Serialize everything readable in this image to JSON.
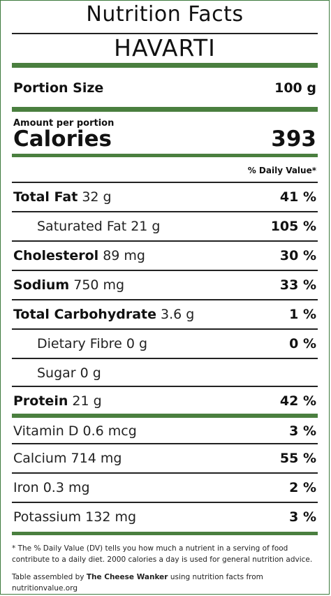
{
  "label": {
    "title": "Nutrition Facts",
    "product": "HAVARTI",
    "portion": {
      "label": "Portion Size",
      "value": "100 g"
    },
    "amount_per_portion": "Amount per portion",
    "calories": {
      "label": "Calories",
      "value": "393"
    },
    "daily_value_header": "% Daily Value*",
    "nutrients": [
      {
        "name": "Total Fat",
        "amount": "32 g",
        "pct": "41 %"
      },
      {
        "name": "Saturated Fat",
        "amount": "21 g",
        "pct": "105 %"
      },
      {
        "name": "Cholesterol",
        "amount": "89 mg",
        "pct": "30 %"
      },
      {
        "name": "Sodium",
        "amount": "750 mg",
        "pct": "33 %"
      },
      {
        "name": "Total Carbohydrate",
        "amount": "3.6 g",
        "pct": "1 %"
      },
      {
        "name": "Dietary Fibre",
        "amount": "0 g",
        "pct": "0 %"
      },
      {
        "name": "Sugar",
        "amount": "0 g",
        "pct": ""
      },
      {
        "name": "Protein",
        "amount": "21 g",
        "pct": "42 %"
      }
    ],
    "vitamins": [
      {
        "name": "Vitamin D",
        "amount": "0.6 mcg",
        "pct": "3 %"
      },
      {
        "name": "Calcium",
        "amount": "714 mg",
        "pct": "55 %"
      },
      {
        "name": "Iron",
        "amount": "0.3 mg",
        "pct": "2 %"
      },
      {
        "name": "Potassium",
        "amount": "132 mg",
        "pct": "3 %"
      }
    ],
    "footnote": "* The % Daily Value (DV) tells you how much a nutrient in a serving of food contribute to a daily diet. 2000 calories a day is used for general nutrition advice.",
    "credit": {
      "prefix": "Table assembled by",
      "author": "The Cheese Wanker",
      "suffix": "using nutrition facts from nutritionvalue.org"
    },
    "colors": {
      "accent": "#4a7f3f",
      "rule": "#222222"
    }
  }
}
